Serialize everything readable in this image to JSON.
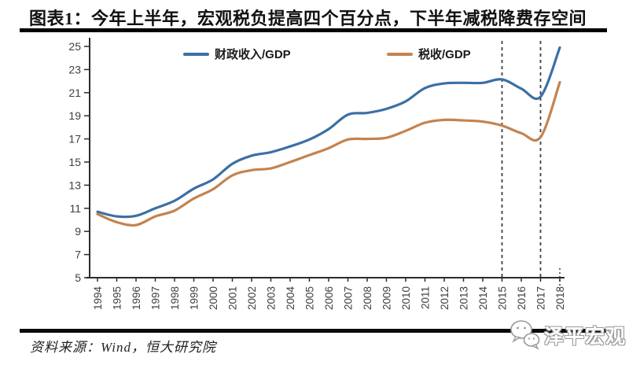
{
  "title": "图表1：今年上半年，宏观税负提高四个百分点，下半年减税降费存空间",
  "source": "资料来源：Wind，恒大研究院",
  "logo": {
    "text": "泽平宏观",
    "icon": "wechat-chat-bubbles-icon"
  },
  "colors": {
    "fiscal_line": "#3c6fa5",
    "tax_line": "#c4834f",
    "dashed_line": "#3f3f3f",
    "axis": "#2b2b2b",
    "tick_label": "#404040",
    "rule": "#000000"
  },
  "chart_data": {
    "type": "line",
    "x": [
      1994,
      1995,
      1996,
      1997,
      1998,
      1999,
      2000,
      2001,
      2002,
      2003,
      2004,
      2005,
      2006,
      2007,
      2008,
      2009,
      2010,
      2011,
      2012,
      2013,
      2014,
      2015,
      2016,
      2017,
      2018
    ],
    "series": [
      {
        "name": "财政收入/GDP",
        "color": "#3c6fa5",
        "values": [
          10.7,
          10.3,
          10.35,
          11.0,
          11.65,
          12.7,
          13.5,
          14.85,
          15.55,
          15.85,
          16.35,
          16.95,
          17.85,
          19.1,
          19.25,
          19.6,
          20.25,
          21.4,
          21.8,
          21.85,
          21.85,
          22.15,
          21.35,
          20.65,
          24.9
        ]
      },
      {
        "name": "税收/GDP",
        "color": "#c4834f",
        "values": [
          10.5,
          9.8,
          9.55,
          10.3,
          10.8,
          11.85,
          12.65,
          13.85,
          14.3,
          14.45,
          15.0,
          15.6,
          16.2,
          16.95,
          17.0,
          17.1,
          17.7,
          18.4,
          18.65,
          18.6,
          18.5,
          18.15,
          17.5,
          17.15,
          21.9
        ]
      }
    ],
    "ylim": [
      5,
      25
    ],
    "yticks": [
      5,
      7,
      9,
      11,
      13,
      15,
      17,
      19,
      21,
      23,
      25
    ],
    "grid": false,
    "legend_position": "top",
    "dashed_vlines_x": [
      2015,
      2017
    ],
    "dotted_axis_mark_x": 2018
  }
}
